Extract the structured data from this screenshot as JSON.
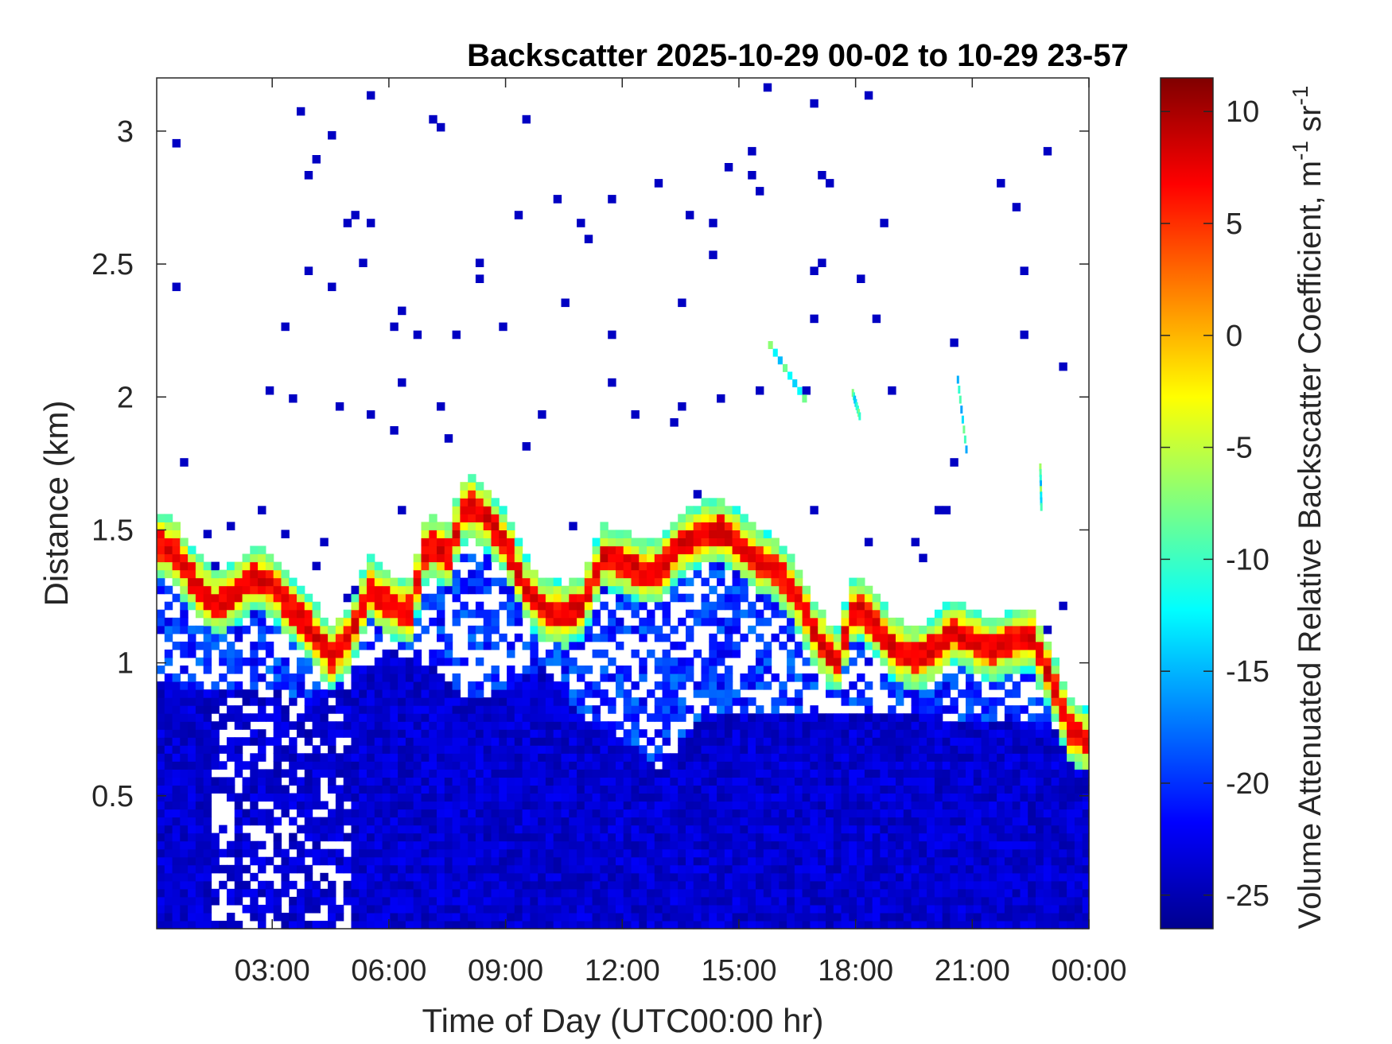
{
  "chart_data": {
    "type": "heatmap",
    "title": "Backscatter 2025-10-29 00-02 to 10-29 23-57",
    "xlabel": "Time of Day (UTC00:00 hr)",
    "ylabel": "Distance (km)",
    "colorbar_label": "Volume Attenuated Relative Backscatter Coefficient, m",
    "colorbar_label_sup1": "-1",
    "colorbar_label_mid": " sr",
    "colorbar_label_sup2": "-1",
    "xlim_hours": [
      0.03,
      24.0
    ],
    "ylim_km": [
      0.0,
      3.2
    ],
    "x_ticks": [
      {
        "hour": 3,
        "label": "03:00"
      },
      {
        "hour": 6,
        "label": "06:00"
      },
      {
        "hour": 9,
        "label": "09:00"
      },
      {
        "hour": 12,
        "label": "12:00"
      },
      {
        "hour": 15,
        "label": "15:00"
      },
      {
        "hour": 18,
        "label": "18:00"
      },
      {
        "hour": 21,
        "label": "21:00"
      },
      {
        "hour": 24,
        "label": "00:00"
      }
    ],
    "y_ticks": [
      {
        "km": 0.5,
        "label": "0.5"
      },
      {
        "km": 1.0,
        "label": "1"
      },
      {
        "km": 1.5,
        "label": "1.5"
      },
      {
        "km": 2.0,
        "label": "2"
      },
      {
        "km": 2.5,
        "label": "2.5"
      },
      {
        "km": 3.0,
        "label": "3"
      }
    ],
    "colorbar": {
      "colormap": "jet",
      "clim": [
        -26.5,
        11.5
      ],
      "ticks": [
        {
          "value": 10,
          "label": "10"
        },
        {
          "value": 5,
          "label": "5"
        },
        {
          "value": 0,
          "label": "0"
        },
        {
          "value": -5,
          "label": "-5"
        },
        {
          "value": -10,
          "label": "-10"
        },
        {
          "value": -15,
          "label": "-15"
        },
        {
          "value": -20,
          "label": "-20"
        },
        {
          "value": -25,
          "label": "-25"
        }
      ]
    },
    "cloud_layer_height_km": [
      [
        0.0,
        1.45
      ],
      [
        0.5,
        1.42
      ],
      [
        1.0,
        1.3
      ],
      [
        1.5,
        1.22
      ],
      [
        2.0,
        1.25
      ],
      [
        2.5,
        1.32
      ],
      [
        3.0,
        1.3
      ],
      [
        3.5,
        1.2
      ],
      [
        4.0,
        1.13
      ],
      [
        4.5,
        1.02
      ],
      [
        5.0,
        1.1
      ],
      [
        5.5,
        1.28
      ],
      [
        6.0,
        1.22
      ],
      [
        6.5,
        1.18
      ],
      [
        7.0,
        1.45
      ],
      [
        7.5,
        1.4
      ],
      [
        8.0,
        1.6
      ],
      [
        8.5,
        1.55
      ],
      [
        9.0,
        1.45
      ],
      [
        9.5,
        1.28
      ],
      [
        10.0,
        1.2
      ],
      [
        10.5,
        1.18
      ],
      [
        11.0,
        1.22
      ],
      [
        11.5,
        1.4
      ],
      [
        12.0,
        1.38
      ],
      [
        12.5,
        1.34
      ],
      [
        13.0,
        1.35
      ],
      [
        13.5,
        1.45
      ],
      [
        14.0,
        1.48
      ],
      [
        14.5,
        1.5
      ],
      [
        15.0,
        1.45
      ],
      [
        15.5,
        1.38
      ],
      [
        16.0,
        1.35
      ],
      [
        16.5,
        1.25
      ],
      [
        17.0,
        1.1
      ],
      [
        17.5,
        1.0
      ],
      [
        18.0,
        1.22
      ],
      [
        18.5,
        1.15
      ],
      [
        19.0,
        1.05
      ],
      [
        19.5,
        1.02
      ],
      [
        20.0,
        1.05
      ],
      [
        20.5,
        1.12
      ],
      [
        21.0,
        1.08
      ],
      [
        21.5,
        1.05
      ],
      [
        22.0,
        1.08
      ],
      [
        22.5,
        1.1
      ],
      [
        23.0,
        0.95
      ],
      [
        23.5,
        0.75
      ],
      [
        24.0,
        0.7
      ]
    ],
    "aerosol_layer_top_km": [
      [
        0.0,
        0.95
      ],
      [
        1.0,
        0.9
      ],
      [
        2.0,
        0.9
      ],
      [
        3.0,
        0.9
      ],
      [
        4.0,
        0.85
      ],
      [
        5.0,
        0.95
      ],
      [
        6.0,
        1.05
      ],
      [
        7.0,
        1.0
      ],
      [
        8.0,
        0.85
      ],
      [
        9.0,
        0.9
      ],
      [
        10.0,
        1.0
      ],
      [
        11.0,
        0.8
      ],
      [
        12.0,
        0.72
      ],
      [
        13.0,
        0.6
      ],
      [
        14.0,
        0.8
      ],
      [
        15.0,
        0.8
      ],
      [
        16.0,
        0.8
      ],
      [
        17.0,
        0.8
      ],
      [
        18.0,
        0.8
      ],
      [
        19.0,
        0.8
      ],
      [
        20.0,
        0.8
      ],
      [
        21.0,
        0.78
      ],
      [
        22.0,
        0.8
      ],
      [
        23.0,
        0.75
      ],
      [
        24.0,
        0.7
      ]
    ],
    "elevated_layers": [
      {
        "start_hour": 15.75,
        "end_hour": 16.75,
        "start_km": 2.18,
        "end_km": 1.95
      },
      {
        "start_hour": 17.9,
        "end_hour": 18.1,
        "start_km": 2.0,
        "end_km": 1.9
      },
      {
        "start_hour": 20.6,
        "end_hour": 20.85,
        "start_km": 2.05,
        "end_km": 1.75
      },
      {
        "start_hour": 22.72,
        "end_hour": 22.75,
        "start_km": 1.72,
        "end_km": 1.55
      }
    ]
  }
}
